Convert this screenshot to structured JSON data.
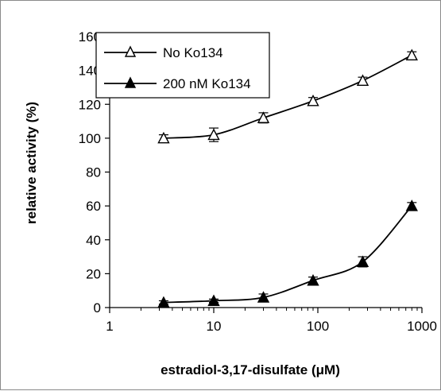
{
  "chart_data": {
    "type": "line",
    "xlabel_main": "estradiol-3,17-disulfate (",
    "xlabel_unit": "μM",
    "xlabel_close": ")",
    "ylabel": "relative activity (%)",
    "x_scale": "log",
    "xlim": [
      1,
      1000
    ],
    "ylim": [
      0,
      160
    ],
    "x_ticks": [
      1,
      10,
      100,
      1000
    ],
    "x_tick_labels": [
      "1",
      "10",
      "100",
      "1000"
    ],
    "y_ticks": [
      0,
      20,
      40,
      60,
      80,
      100,
      120,
      140,
      160
    ],
    "y_tick_labels": [
      "0",
      "20",
      "40",
      "60",
      "80",
      "100",
      "120",
      "140",
      "160"
    ],
    "grid": false,
    "legend_position": "top-left",
    "series": [
      {
        "name": "No Ko134",
        "marker": "open-triangle",
        "color": "#000000",
        "x": [
          3.3,
          10,
          30,
          90,
          270,
          800
        ],
        "y": [
          100,
          102,
          112,
          122,
          134,
          149
        ],
        "error": [
          2,
          4,
          3,
          2,
          2,
          2
        ]
      },
      {
        "name": "200 nM Ko134",
        "marker": "filled-triangle",
        "color": "#000000",
        "x": [
          3.3,
          10,
          30,
          90,
          270,
          800
        ],
        "y": [
          3,
          4,
          6,
          16,
          27,
          60
        ],
        "error": [
          1,
          1,
          2,
          2,
          3,
          2
        ]
      }
    ]
  }
}
